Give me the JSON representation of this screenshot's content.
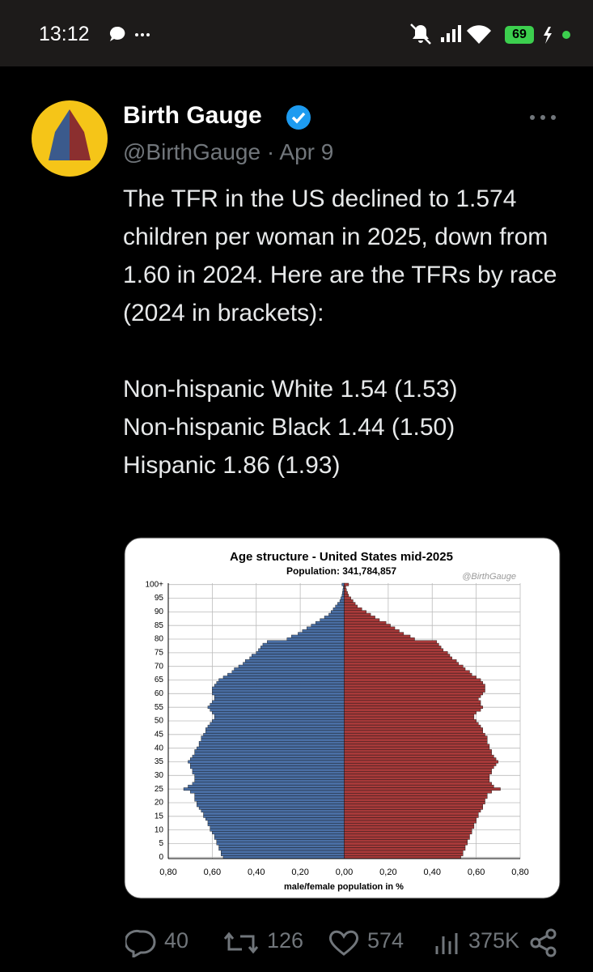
{
  "status_bar": {
    "time": "13:12",
    "battery": "69"
  },
  "tweet": {
    "name": "Birth Gauge",
    "handle": "@BirthGauge",
    "date": "Apr 9",
    "text": [
      "The TFR in the US declined to 1.574 children per woman in 2025, down from 1.60 in 2024. Here are the TFRs by race (2024 in brackets):",
      "Non-hispanic White 1.54 (1.53)",
      "Non-hispanic Black 1.44 (1.50)",
      "Hispanic 1.86 (1.93)"
    ],
    "stats": {
      "replies": "40",
      "reposts": "126",
      "likes": "574",
      "views": "375K"
    }
  },
  "chart_data": {
    "type": "population_pyramid",
    "title": "Age structure - United States mid-2025",
    "subtitle": "Population: 341,784,857",
    "watermark": "@BirthGauge",
    "xlabel": "male/female population  in %",
    "xlim": [
      -0.8,
      0.8
    ],
    "xticks": [
      {
        "value": -0.8,
        "label": "0,80"
      },
      {
        "value": -0.6,
        "label": "0,60"
      },
      {
        "value": -0.4,
        "label": "0,40"
      },
      {
        "value": -0.2,
        "label": "0,20"
      },
      {
        "value": 0,
        "label": "0,00"
      },
      {
        "value": 0.2,
        "label": "0,20"
      },
      {
        "value": 0.4,
        "label": "0,40"
      },
      {
        "value": 0.6,
        "label": "0,60"
      },
      {
        "value": 0.8,
        "label": "0,80"
      }
    ],
    "ylim": [
      -0.5,
      100.5
    ],
    "yticks": [
      0,
      5,
      10,
      15,
      20,
      25,
      30,
      35,
      40,
      45,
      50,
      55,
      60,
      65,
      70,
      75,
      80,
      85,
      90,
      95,
      {
        "value": 100,
        "label": "100+"
      }
    ],
    "grid": true,
    "series": [
      {
        "side": "left",
        "color": "#4a6fa5",
        "values": [
          0.55,
          0.56,
          0.56,
          0.57,
          0.57,
          0.58,
          0.58,
          0.59,
          0.59,
          0.6,
          0.61,
          0.61,
          0.62,
          0.62,
          0.63,
          0.64,
          0.64,
          0.65,
          0.66,
          0.67,
          0.67,
          0.68,
          0.68,
          0.68,
          0.7,
          0.73,
          0.71,
          0.69,
          0.68,
          0.68,
          0.68,
          0.69,
          0.69,
          0.7,
          0.7,
          0.71,
          0.7,
          0.69,
          0.68,
          0.68,
          0.67,
          0.66,
          0.66,
          0.65,
          0.65,
          0.64,
          0.63,
          0.63,
          0.62,
          0.61,
          0.6,
          0.59,
          0.59,
          0.6,
          0.61,
          0.62,
          0.61,
          0.6,
          0.59,
          0.59,
          0.6,
          0.6,
          0.6,
          0.59,
          0.58,
          0.57,
          0.55,
          0.53,
          0.51,
          0.5,
          0.48,
          0.46,
          0.45,
          0.43,
          0.42,
          0.4,
          0.39,
          0.38,
          0.37,
          0.35,
          0.26,
          0.24,
          0.21,
          0.19,
          0.17,
          0.15,
          0.13,
          0.11,
          0.09,
          0.07,
          0.06,
          0.05,
          0.04,
          0.03,
          0.02,
          0.015,
          0.01,
          0.008,
          0.006,
          0.004,
          0.01
        ]
      },
      {
        "side": "right",
        "color": "#a83a3a",
        "values": [
          0.53,
          0.54,
          0.54,
          0.55,
          0.55,
          0.56,
          0.56,
          0.57,
          0.57,
          0.58,
          0.58,
          0.59,
          0.59,
          0.6,
          0.6,
          0.61,
          0.61,
          0.62,
          0.63,
          0.63,
          0.64,
          0.64,
          0.65,
          0.65,
          0.67,
          0.71,
          0.68,
          0.67,
          0.66,
          0.66,
          0.66,
          0.67,
          0.67,
          0.68,
          0.69,
          0.7,
          0.69,
          0.68,
          0.67,
          0.67,
          0.66,
          0.66,
          0.65,
          0.65,
          0.65,
          0.64,
          0.63,
          0.63,
          0.62,
          0.61,
          0.6,
          0.59,
          0.59,
          0.6,
          0.62,
          0.63,
          0.62,
          0.62,
          0.61,
          0.62,
          0.63,
          0.64,
          0.64,
          0.64,
          0.63,
          0.62,
          0.6,
          0.58,
          0.57,
          0.55,
          0.54,
          0.52,
          0.51,
          0.49,
          0.48,
          0.47,
          0.45,
          0.44,
          0.43,
          0.42,
          0.32,
          0.3,
          0.27,
          0.25,
          0.23,
          0.21,
          0.19,
          0.16,
          0.14,
          0.12,
          0.1,
          0.08,
          0.06,
          0.05,
          0.04,
          0.03,
          0.02,
          0.015,
          0.01,
          0.007,
          0.02
        ]
      }
    ]
  }
}
